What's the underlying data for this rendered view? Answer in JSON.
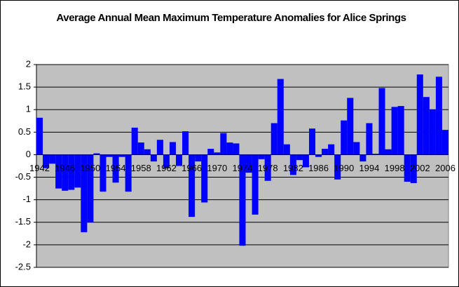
{
  "chart_data": {
    "type": "bar",
    "title": "Average Annual Mean Maximum Temperature Anomalies for Alice Springs",
    "categories": [
      "1942",
      null,
      null,
      null,
      "1946",
      null,
      null,
      null,
      "1950",
      null,
      null,
      null,
      "1954",
      null,
      null,
      null,
      "1958",
      null,
      null,
      null,
      "1962",
      null,
      null,
      null,
      "1966",
      null,
      null,
      null,
      "1970",
      null,
      null,
      null,
      "1974",
      null,
      null,
      null,
      "1978",
      null,
      null,
      null,
      "1982",
      null,
      null,
      null,
      "1986",
      null,
      null,
      null,
      "1990",
      null,
      null,
      null,
      "1994",
      null,
      null,
      null,
      "1998",
      null,
      null,
      null,
      "2002",
      null,
      null,
      null,
      "2006"
    ],
    "values": [
      0.82,
      -0.3,
      -0.2,
      -0.75,
      -0.8,
      -0.78,
      -0.73,
      -1.72,
      -1.5,
      0.03,
      -0.82,
      -0.05,
      -0.62,
      -0.05,
      -0.82,
      0.6,
      0.27,
      0.12,
      -0.15,
      0.33,
      -0.3,
      0.28,
      -0.25,
      0.52,
      -1.38,
      -0.15,
      -1.06,
      0.13,
      0.05,
      0.48,
      0.27,
      0.25,
      -2.02,
      -0.4,
      -1.33,
      -0.1,
      -0.58,
      0.7,
      1.68,
      0.23,
      -0.45,
      -0.12,
      -0.28,
      0.58,
      -0.05,
      0.13,
      0.23,
      -0.55,
      0.76,
      1.26,
      0.28,
      -0.15,
      0.7,
      0.02,
      1.48,
      0.12,
      1.06,
      1.08,
      -0.6,
      -0.63,
      1.78,
      1.28,
      1.0,
      1.73,
      0.55
    ],
    "color": "#0000ff",
    "ylim": [
      -2.5,
      2
    ],
    "yticks": [
      -2.5,
      -2,
      -1.5,
      -1,
      -0.5,
      0,
      0.5,
      1,
      1.5,
      2
    ],
    "grid": true
  }
}
